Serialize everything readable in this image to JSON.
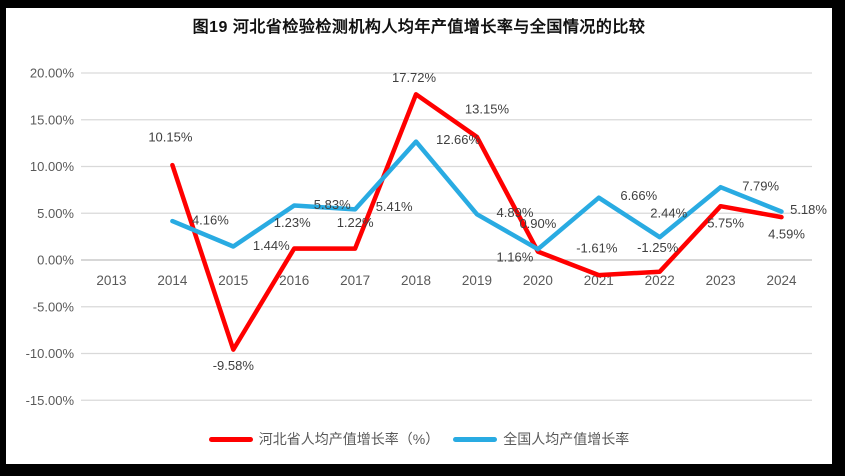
{
  "title": "图19  河北省检验检测机构人均年产值增长率与全国情况的比较",
  "colors": {
    "hebei_series": "#FF0000",
    "national_series": "#29ABE2",
    "gridline": "#D9D9D9",
    "zero_axis": "#BFBFBF",
    "tick_text": "#595959",
    "data_label_text": "#404040",
    "frame_background": "#000000",
    "panel_background": "#FFFFFF"
  },
  "chart_data": {
    "type": "line",
    "categories": [
      "2013",
      "2014",
      "2015",
      "2016",
      "2017",
      "2018",
      "2019",
      "2020",
      "2021",
      "2022",
      "2023",
      "2024"
    ],
    "series": [
      {
        "name": "河北省人均产值增长率（%）",
        "color_key": "hebei_series",
        "values": [
          null,
          10.15,
          -9.58,
          1.23,
          1.22,
          17.72,
          13.15,
          0.9,
          -1.61,
          -1.25,
          5.75,
          4.59
        ],
        "labels": [
          null,
          "10.15%",
          "-9.58%",
          "1.23%",
          "1.22%",
          "17.72%",
          "13.15%",
          "0.90%",
          "-1.61%",
          "-1.25%",
          "5.75%",
          "4.59%"
        ],
        "label_offsets": [
          null,
          [
            -2,
            -28
          ],
          [
            0,
            16
          ],
          [
            -2,
            -26
          ],
          [
            0,
            -26
          ],
          [
            -2,
            -17
          ],
          [
            10,
            -28
          ],
          [
            0,
            -28
          ],
          [
            -2,
            -27
          ],
          [
            -2,
            -24
          ],
          [
            5,
            17
          ],
          [
            5,
            17
          ]
        ]
      },
      {
        "name": "全国人均产值增长率",
        "color_key": "national_series",
        "values": [
          null,
          4.16,
          1.44,
          5.83,
          5.41,
          12.66,
          4.89,
          1.16,
          6.66,
          2.44,
          7.79,
          5.18
        ],
        "labels": [
          null,
          "4.16%",
          "1.44%",
          "5.83%",
          "5.41%",
          "12.66%",
          "4.89%",
          "1.16%",
          "6.66%",
          "2.44%",
          "7.79%",
          "5.18%"
        ],
        "label_offsets": [
          null,
          [
            38,
            -1
          ],
          [
            38,
            -1
          ],
          [
            38,
            -1
          ],
          [
            39,
            -3
          ],
          [
            42,
            -2
          ],
          [
            38,
            -2
          ],
          [
            -23,
            8
          ],
          [
            40,
            -2
          ],
          [
            9,
            -24
          ],
          [
            40,
            -1
          ],
          [
            27,
            -2
          ]
        ]
      }
    ],
    "y_axis": {
      "min": -15,
      "max": 20,
      "step": 5,
      "tick_labels": [
        "20.00%",
        "15.00%",
        "10.00%",
        "5.00%",
        "0.00%",
        "-5.00%",
        "-10.00%",
        "-15.00%"
      ]
    },
    "grid": "horizontal",
    "legend_position": "bottom"
  },
  "legend": {
    "items": [
      {
        "label": "河北省人均产值增长率（%）"
      },
      {
        "label": "全国人均产值增长率"
      }
    ]
  }
}
